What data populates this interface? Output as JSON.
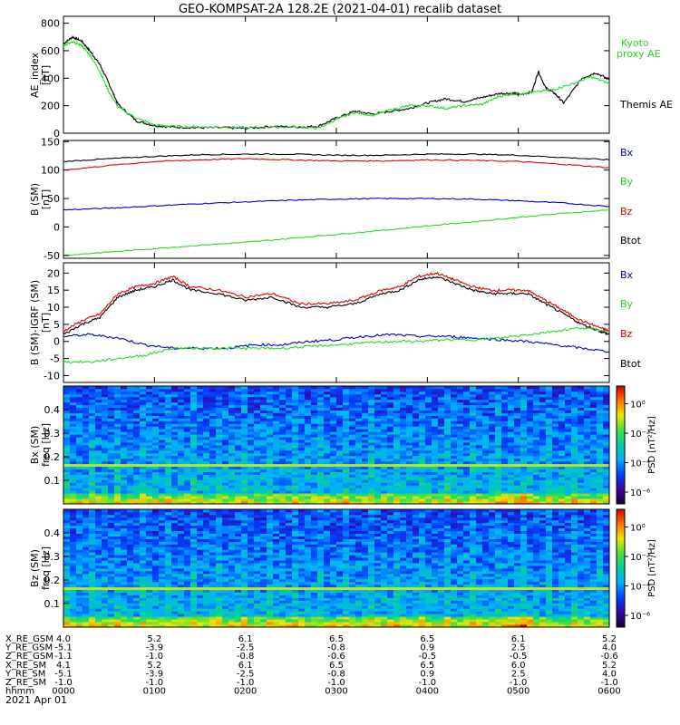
{
  "title": "GEO-KOMPSAT-2A 128.2E (2021-04-01) recalib dataset",
  "colors": {
    "black": "#000000",
    "red": "#e00000",
    "green": "#22dd22",
    "blue": "#0000cc",
    "ae_green": "#22dd22",
    "legend_green": "#33cc33",
    "legend_blue": "#0000aa"
  },
  "chart_data": [
    {
      "type": "line",
      "ylabel": "AE_index",
      "yunit": "[nT]",
      "ylim": [
        0,
        850
      ],
      "yticks": [
        "0",
        "200",
        "400",
        "600",
        "800"
      ],
      "xlim": [
        0,
        6
      ],
      "legend": [
        "Kyoto",
        "proxy AE",
        "Themis AE"
      ],
      "series": [
        {
          "name": "Themis AE",
          "color": "black",
          "x": [
            0,
            0.1,
            0.2,
            0.3,
            0.4,
            0.5,
            0.6,
            0.8,
            1.0,
            1.2,
            1.5,
            1.8,
            2.0,
            2.3,
            2.6,
            2.8,
            3.0,
            3.2,
            3.4,
            3.6,
            3.8,
            4.0,
            4.2,
            4.4,
            4.6,
            4.8,
            4.95,
            5.0,
            5.15,
            5.22,
            5.3,
            5.4,
            5.5,
            5.7,
            5.85,
            6.0
          ],
          "y": [
            650,
            700,
            670,
            590,
            500,
            360,
            210,
            90,
            55,
            45,
            40,
            40,
            35,
            50,
            45,
            50,
            110,
            160,
            140,
            160,
            180,
            220,
            250,
            230,
            260,
            290,
            290,
            280,
            300,
            450,
            330,
            290,
            220,
            400,
            440,
            390
          ]
        },
        {
          "name": "Kyoto proxy AE",
          "color": "green",
          "x": [
            0,
            0.1,
            0.2,
            0.3,
            0.4,
            0.5,
            0.6,
            0.8,
            1.0,
            1.2,
            1.5,
            1.8,
            2.0,
            2.3,
            2.6,
            2.8,
            3.0,
            3.2,
            3.4,
            3.6,
            3.8,
            4.0,
            4.2,
            4.4,
            4.6,
            4.8,
            5.0,
            5.2,
            5.4,
            5.6,
            5.8,
            6.0
          ],
          "y": [
            640,
            660,
            640,
            560,
            450,
            300,
            190,
            110,
            60,
            50,
            45,
            45,
            40,
            45,
            45,
            35,
            100,
            150,
            130,
            170,
            200,
            200,
            180,
            200,
            210,
            270,
            290,
            300,
            320,
            360,
            410,
            360
          ]
        }
      ]
    },
    {
      "type": "line",
      "ylabel": "B (SM)",
      "yunit": "[nT]",
      "ylim": [
        -55,
        152
      ],
      "yticks": [
        "-50",
        "0",
        "50",
        "100",
        "150"
      ],
      "xlim": [
        0,
        6
      ],
      "legend": [
        "Bx",
        "By",
        "Bz",
        "Btot"
      ],
      "series": [
        {
          "name": "Btot",
          "color": "black",
          "x": [
            0,
            0.5,
            1,
            1.5,
            2,
            2.5,
            3,
            3.5,
            4,
            4.5,
            5,
            5.5,
            6
          ],
          "y": [
            115,
            120,
            124,
            127,
            128,
            128,
            126,
            126,
            128,
            128,
            126,
            122,
            118
          ]
        },
        {
          "name": "Bz",
          "color": "red",
          "x": [
            0,
            0.5,
            1,
            1.5,
            2,
            2.5,
            3,
            3.5,
            4,
            4.5,
            5,
            5.5,
            6
          ],
          "y": [
            100,
            108,
            115,
            118,
            120,
            118,
            116,
            116,
            118,
            117,
            115,
            110,
            104
          ]
        },
        {
          "name": "Bx",
          "color": "blue",
          "x": [
            0,
            0.5,
            1,
            1.5,
            2,
            2.5,
            3,
            3.5,
            4,
            4.5,
            5,
            5.5,
            6
          ],
          "y": [
            30,
            33,
            37,
            41,
            44,
            47,
            49,
            50,
            50,
            49,
            46,
            42,
            36
          ]
        },
        {
          "name": "By",
          "color": "green",
          "x": [
            0,
            0.5,
            1,
            1.5,
            2,
            2.5,
            3,
            3.5,
            4,
            4.5,
            5,
            5.5,
            6
          ],
          "y": [
            -50,
            -44,
            -38,
            -32,
            -27,
            -20,
            -13,
            -6,
            2,
            9,
            17,
            24,
            30
          ]
        }
      ]
    },
    {
      "type": "line",
      "ylabel": "B (SM)-IGRF (SM)",
      "yunit": "[nT]",
      "ylim": [
        -12,
        23
      ],
      "yticks": [
        "-10",
        "-5",
        "0",
        "5",
        "10",
        "15",
        "20"
      ],
      "xlim": [
        0,
        6
      ],
      "legend": [
        "Bx",
        "By",
        "Bz",
        "Btot"
      ],
      "series": [
        {
          "name": "Bz",
          "color": "red",
          "x": [
            0,
            0.2,
            0.4,
            0.6,
            0.8,
            1.0,
            1.2,
            1.4,
            1.7,
            2.0,
            2.3,
            2.6,
            2.9,
            3.2,
            3.5,
            3.7,
            3.9,
            4.1,
            4.3,
            4.5,
            4.7,
            4.9,
            5.1,
            5.3,
            5.5,
            5.7,
            5.9,
            6.0
          ],
          "y": [
            3,
            6,
            8,
            14,
            16,
            17,
            19,
            16,
            15,
            13,
            14,
            11,
            11,
            12,
            15,
            16,
            19,
            20,
            18,
            16,
            15,
            15,
            15,
            12,
            9,
            6,
            4,
            3
          ]
        },
        {
          "name": "Btot",
          "color": "black",
          "x": [
            0,
            0.2,
            0.4,
            0.6,
            0.8,
            1.0,
            1.2,
            1.4,
            1.7,
            2.0,
            2.3,
            2.6,
            2.9,
            3.2,
            3.5,
            3.7,
            3.9,
            4.1,
            4.3,
            4.5,
            4.7,
            4.9,
            5.1,
            5.3,
            5.5,
            5.7,
            5.9,
            6.0
          ],
          "y": [
            2,
            5,
            7,
            13,
            15,
            16,
            18,
            15,
            14,
            12,
            13,
            10,
            10,
            11,
            14,
            15,
            18,
            19,
            17,
            15,
            14,
            14,
            14,
            11,
            8,
            5,
            3,
            2
          ]
        },
        {
          "name": "Bx",
          "color": "blue",
          "x": [
            0,
            0.3,
            0.6,
            0.9,
            1.2,
            1.5,
            1.8,
            2.1,
            2.4,
            2.7,
            3.0,
            3.3,
            3.6,
            3.9,
            4.2,
            4.5,
            4.8,
            5.1,
            5.4,
            5.7,
            6.0
          ],
          "y": [
            1.5,
            2,
            1,
            -1,
            -2,
            -2,
            -2,
            -1,
            -1,
            0,
            0.5,
            1.5,
            2,
            1.5,
            1.5,
            1,
            0.5,
            0,
            -1,
            -2,
            -3
          ]
        },
        {
          "name": "By",
          "color": "green",
          "x": [
            0,
            0.3,
            0.6,
            0.9,
            1.2,
            1.5,
            1.8,
            2.1,
            2.4,
            2.7,
            3.0,
            3.3,
            3.6,
            3.9,
            4.2,
            4.5,
            4.8,
            5.1,
            5.4,
            5.7,
            6.0
          ],
          "y": [
            -6,
            -6,
            -5,
            -4,
            -2,
            -2,
            -2,
            -2,
            -2,
            -1.5,
            -1,
            -0.5,
            0,
            0,
            0.5,
            0.5,
            1,
            2,
            3,
            4,
            3
          ]
        }
      ]
    },
    {
      "type": "heatmap",
      "ylabel": "Bx (SM)",
      "yunit": "freq [Hz]",
      "ylim": [
        0,
        0.5
      ],
      "yticks": [
        "0.1",
        "0.2",
        "0.3",
        "0.4"
      ],
      "colorbar_label": "PSD [nT²/Hz]",
      "colorbar_ticks": [
        "10⁰",
        "10⁻²",
        "10⁻⁴",
        "10⁻⁶"
      ]
    },
    {
      "type": "heatmap",
      "ylabel": "Bz (SM)",
      "yunit": "freq [Hz]",
      "ylim": [
        0,
        0.5
      ],
      "yticks": [
        "0.1",
        "0.2",
        "0.3",
        "0.4"
      ],
      "colorbar_label": "PSD [nT²/Hz]",
      "colorbar_ticks": [
        "10⁰",
        "10⁻²",
        "10⁻⁴",
        "10⁻⁶"
      ]
    }
  ],
  "xaxis_table": {
    "row_labels": [
      "X_RE_GSM",
      "Y_RE_GSM",
      "Z_RE_GSM",
      "X_RE_SM",
      "Y_RE_SM",
      "Z_RE_SM",
      "hhmm"
    ],
    "columns": [
      [
        "4.0",
        "-5.1",
        "-1.1",
        "4.1",
        "-5.1",
        "-1.0",
        "0000"
      ],
      [
        "5.2",
        "-3.9",
        "-1.0",
        "5.2",
        "-3.9",
        "-1.0",
        "0100"
      ],
      [
        "6.1",
        "-2.5",
        "-0.8",
        "6.1",
        "-2.5",
        "-1.0",
        "0200"
      ],
      [
        "6.5",
        "-0.8",
        "-0.6",
        "6.5",
        "-0.8",
        "-1.0",
        "0300"
      ],
      [
        "6.5",
        "0.9",
        "-0.5",
        "6.5",
        "0.9",
        "-1.0",
        "0400"
      ],
      [
        "6.1",
        "2.5",
        "-0.5",
        "6.0",
        "2.5",
        "-1.0",
        "0500"
      ],
      [
        "5.2",
        "4.0",
        "-0.6",
        "5.2",
        "4.0",
        "-1.0",
        "0600"
      ]
    ],
    "date": "2021 Apr 01"
  }
}
